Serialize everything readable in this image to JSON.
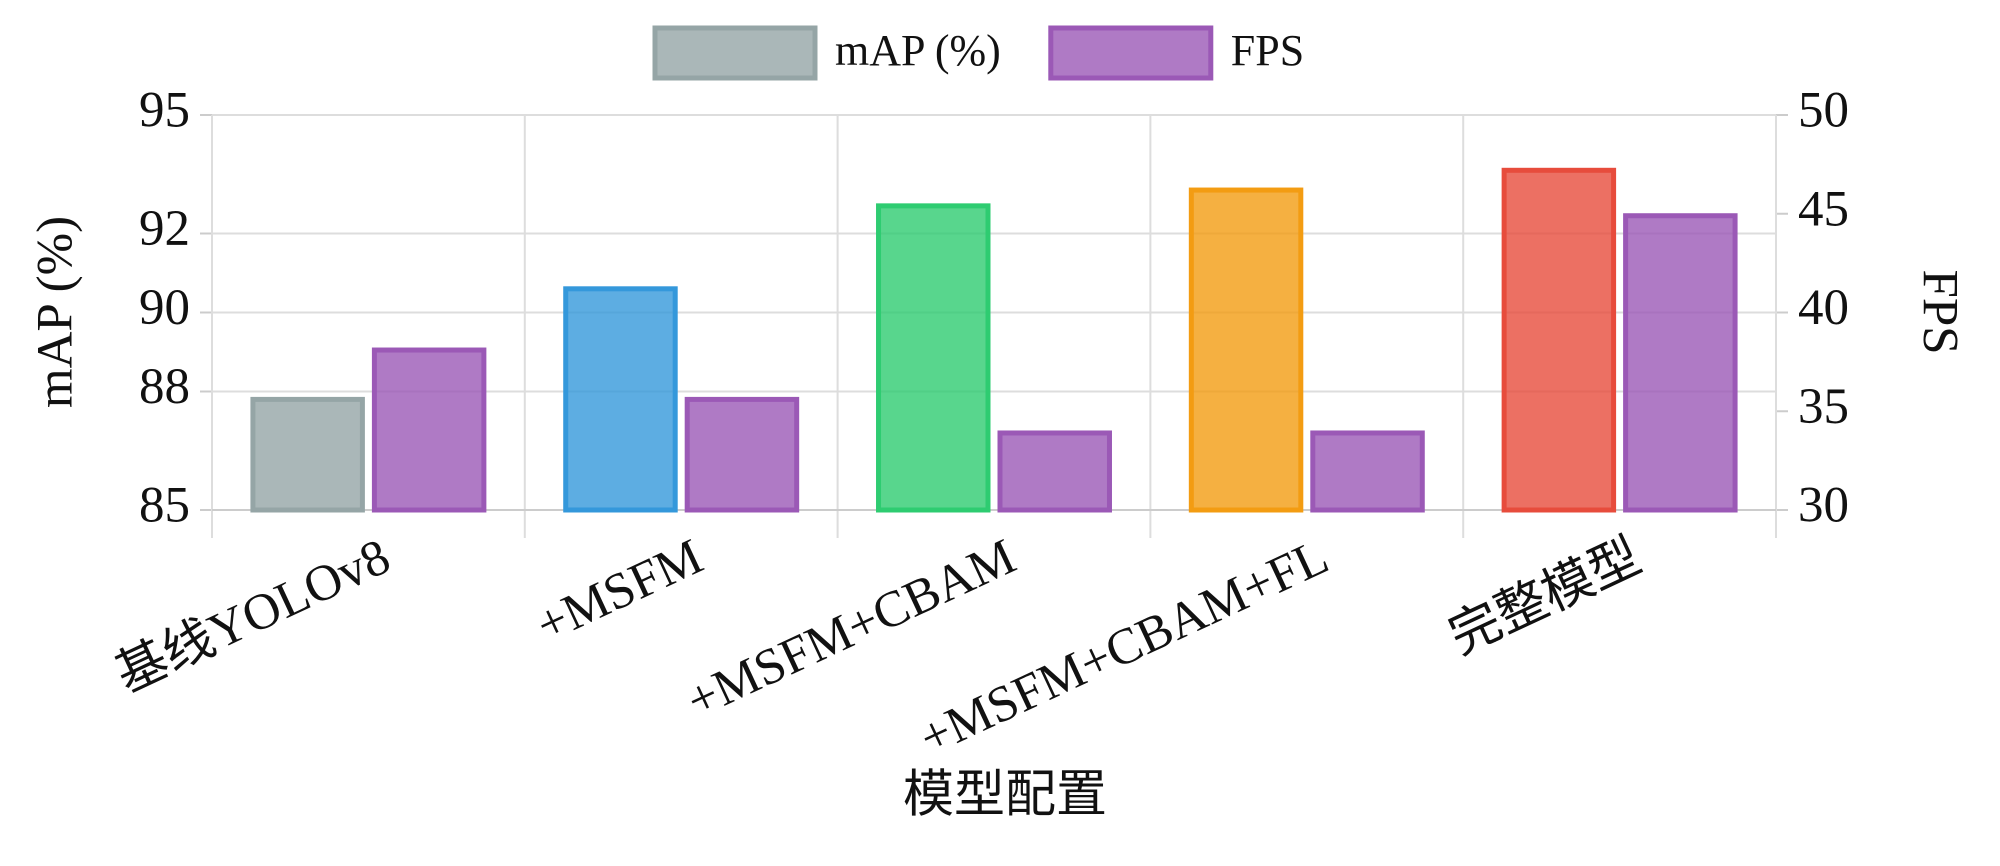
{
  "chart_data": {
    "type": "bar",
    "xlabel": "模型配置",
    "ylabel": "mAP (%)",
    "y2label": "FPS",
    "categories": [
      "基线YOLOv8",
      "+MSFM",
      "+MSFM+CBAM",
      "+MSFM+CBAM+FL",
      "完整模型"
    ],
    "series": [
      {
        "name": "mAP (%)",
        "color": "#95a5a6",
        "colors": [
          "#95a5a6",
          "#3498db",
          "#2ecc71",
          "#f39c12",
          "#e74c3c"
        ],
        "values": [
          87.8,
          90.6,
          92.7,
          93.1,
          93.6
        ]
      },
      {
        "name": "FPS",
        "color": "#9b59b6",
        "axis": "y2",
        "values": [
          38.1,
          35.6,
          33.9,
          33.9,
          44.9
        ]
      }
    ],
    "ylim": [
      85,
      95
    ],
    "yticks": [
      85,
      88,
      90,
      92,
      95
    ],
    "y2lim": [
      30,
      50
    ],
    "y2ticks": [
      30,
      35,
      40,
      45,
      50
    ],
    "grid": true,
    "legend": "top"
  }
}
